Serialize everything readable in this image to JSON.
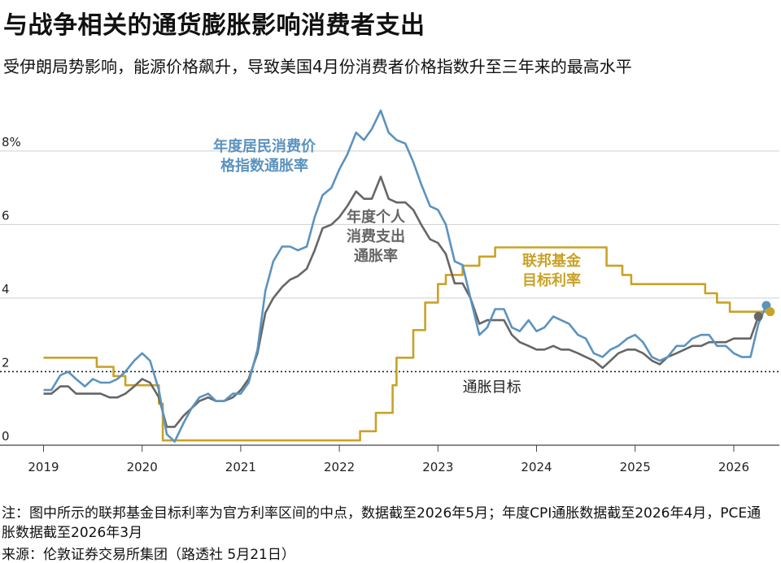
{
  "title": "与战争相关的通货膨胀影响消费者支出",
  "subtitle": "受伊朗局势影响，能源价格飙升，导致美国4月份消费者价格指数升至三年来的最高水平",
  "note": "注：图中所示的联邦基金目标利率为官方利率区间的中点，数据截至2026年5月；年度CPI通胀数据截至2026年4月，PCE通胀数据截至2026年3月",
  "source": "来源：伦敦证券交易所集团（路透社 5月21日）",
  "chart_data": {
    "type": "line",
    "ylim": [
      0,
      9.3
    ],
    "xlim": [
      2018.93,
      2026.38
    ],
    "y_ticks": [
      {
        "value": 0,
        "label": "0"
      },
      {
        "value": 2,
        "label": "2"
      },
      {
        "value": 4,
        "label": "4"
      },
      {
        "value": 6,
        "label": "6"
      },
      {
        "value": 8,
        "label": "8%"
      }
    ],
    "x_ticks": [
      {
        "value": 2019,
        "label": "2019"
      },
      {
        "value": 2020,
        "label": "2020"
      },
      {
        "value": 2021,
        "label": "2021"
      },
      {
        "value": 2022,
        "label": "2022"
      },
      {
        "value": 2023,
        "label": "2023"
      },
      {
        "value": 2024,
        "label": "2024"
      },
      {
        "value": 2025,
        "label": "2025"
      },
      {
        "value": 2026,
        "label": "2026"
      }
    ],
    "target_line": {
      "value": 2,
      "label": "通胀目标"
    },
    "series": [
      {
        "name": "年度居民消费价格指数通胀率",
        "label_lines": [
          "年度居民消费价",
          "格指数通胀率"
        ],
        "color": "#5b93bf",
        "points": [
          [
            2019.0,
            1.5
          ],
          [
            2019.08,
            1.5
          ],
          [
            2019.17,
            1.9
          ],
          [
            2019.25,
            2.0
          ],
          [
            2019.33,
            1.8
          ],
          [
            2019.42,
            1.6
          ],
          [
            2019.5,
            1.8
          ],
          [
            2019.58,
            1.7
          ],
          [
            2019.67,
            1.7
          ],
          [
            2019.75,
            1.8
          ],
          [
            2019.83,
            2.0
          ],
          [
            2019.92,
            2.3
          ],
          [
            2020.0,
            2.5
          ],
          [
            2020.08,
            2.3
          ],
          [
            2020.17,
            1.5
          ],
          [
            2020.25,
            0.3
          ],
          [
            2020.33,
            0.1
          ],
          [
            2020.42,
            0.6
          ],
          [
            2020.5,
            1.0
          ],
          [
            2020.58,
            1.3
          ],
          [
            2020.67,
            1.4
          ],
          [
            2020.75,
            1.2
          ],
          [
            2020.83,
            1.2
          ],
          [
            2020.92,
            1.4
          ],
          [
            2021.0,
            1.4
          ],
          [
            2021.08,
            1.7
          ],
          [
            2021.17,
            2.6
          ],
          [
            2021.25,
            4.2
          ],
          [
            2021.33,
            5.0
          ],
          [
            2021.42,
            5.4
          ],
          [
            2021.5,
            5.4
          ],
          [
            2021.58,
            5.3
          ],
          [
            2021.67,
            5.4
          ],
          [
            2021.75,
            6.2
          ],
          [
            2021.83,
            6.8
          ],
          [
            2021.92,
            7.0
          ],
          [
            2022.0,
            7.5
          ],
          [
            2022.08,
            7.9
          ],
          [
            2022.17,
            8.5
          ],
          [
            2022.25,
            8.3
          ],
          [
            2022.33,
            8.6
          ],
          [
            2022.42,
            9.1
          ],
          [
            2022.5,
            8.5
          ],
          [
            2022.58,
            8.3
          ],
          [
            2022.67,
            8.2
          ],
          [
            2022.75,
            7.7
          ],
          [
            2022.83,
            7.1
          ],
          [
            2022.92,
            6.5
          ],
          [
            2023.0,
            6.4
          ],
          [
            2023.08,
            6.0
          ],
          [
            2023.17,
            5.0
          ],
          [
            2023.25,
            4.9
          ],
          [
            2023.33,
            4.0
          ],
          [
            2023.42,
            3.0
          ],
          [
            2023.5,
            3.2
          ],
          [
            2023.58,
            3.7
          ],
          [
            2023.67,
            3.7
          ],
          [
            2023.75,
            3.2
          ],
          [
            2023.83,
            3.1
          ],
          [
            2023.92,
            3.4
          ],
          [
            2024.0,
            3.1
          ],
          [
            2024.08,
            3.2
          ],
          [
            2024.17,
            3.5
          ],
          [
            2024.25,
            3.4
          ],
          [
            2024.33,
            3.3
          ],
          [
            2024.42,
            3.0
          ],
          [
            2024.5,
            2.9
          ],
          [
            2024.58,
            2.5
          ],
          [
            2024.67,
            2.4
          ],
          [
            2024.75,
            2.6
          ],
          [
            2024.83,
            2.7
          ],
          [
            2024.92,
            2.9
          ],
          [
            2025.0,
            3.0
          ],
          [
            2025.08,
            2.8
          ],
          [
            2025.17,
            2.4
          ],
          [
            2025.25,
            2.3
          ],
          [
            2025.33,
            2.4
          ],
          [
            2025.42,
            2.7
          ],
          [
            2025.5,
            2.7
          ],
          [
            2025.58,
            2.9
          ],
          [
            2025.67,
            3.0
          ],
          [
            2025.75,
            3.0
          ],
          [
            2025.83,
            2.7
          ],
          [
            2025.92,
            2.7
          ],
          [
            2026.0,
            2.5
          ],
          [
            2026.08,
            2.4
          ],
          [
            2026.17,
            2.4
          ],
          [
            2026.25,
            3.3
          ],
          [
            2026.33,
            3.8
          ]
        ]
      },
      {
        "name": "年度个人消费支出通胀率",
        "label_lines": [
          "年度个人",
          "消费支出",
          "通胀率"
        ],
        "color": "#666666",
        "points": [
          [
            2019.0,
            1.4
          ],
          [
            2019.08,
            1.4
          ],
          [
            2019.17,
            1.6
          ],
          [
            2019.25,
            1.6
          ],
          [
            2019.33,
            1.4
          ],
          [
            2019.42,
            1.4
          ],
          [
            2019.5,
            1.4
          ],
          [
            2019.58,
            1.4
          ],
          [
            2019.67,
            1.3
          ],
          [
            2019.75,
            1.3
          ],
          [
            2019.83,
            1.4
          ],
          [
            2019.92,
            1.6
          ],
          [
            2020.0,
            1.8
          ],
          [
            2020.08,
            1.7
          ],
          [
            2020.17,
            1.3
          ],
          [
            2020.25,
            0.5
          ],
          [
            2020.33,
            0.5
          ],
          [
            2020.42,
            0.8
          ],
          [
            2020.5,
            1.0
          ],
          [
            2020.58,
            1.2
          ],
          [
            2020.67,
            1.3
          ],
          [
            2020.75,
            1.2
          ],
          [
            2020.83,
            1.2
          ],
          [
            2020.92,
            1.3
          ],
          [
            2021.0,
            1.5
          ],
          [
            2021.08,
            1.8
          ],
          [
            2021.17,
            2.5
          ],
          [
            2021.25,
            3.6
          ],
          [
            2021.33,
            4.0
          ],
          [
            2021.42,
            4.3
          ],
          [
            2021.5,
            4.5
          ],
          [
            2021.58,
            4.6
          ],
          [
            2021.67,
            4.8
          ],
          [
            2021.75,
            5.3
          ],
          [
            2021.83,
            5.9
          ],
          [
            2021.92,
            6.0
          ],
          [
            2022.0,
            6.2
          ],
          [
            2022.08,
            6.5
          ],
          [
            2022.17,
            6.9
          ],
          [
            2022.25,
            6.7
          ],
          [
            2022.33,
            6.7
          ],
          [
            2022.42,
            7.3
          ],
          [
            2022.5,
            6.7
          ],
          [
            2022.58,
            6.6
          ],
          [
            2022.67,
            6.6
          ],
          [
            2022.75,
            6.4
          ],
          [
            2022.83,
            6.0
          ],
          [
            2022.92,
            5.6
          ],
          [
            2023.0,
            5.5
          ],
          [
            2023.08,
            5.2
          ],
          [
            2023.17,
            4.4
          ],
          [
            2023.25,
            4.4
          ],
          [
            2023.33,
            4.0
          ],
          [
            2023.42,
            3.3
          ],
          [
            2023.5,
            3.4
          ],
          [
            2023.58,
            3.4
          ],
          [
            2023.67,
            3.4
          ],
          [
            2023.75,
            3.0
          ],
          [
            2023.83,
            2.8
          ],
          [
            2023.92,
            2.7
          ],
          [
            2024.0,
            2.6
          ],
          [
            2024.08,
            2.6
          ],
          [
            2024.17,
            2.7
          ],
          [
            2024.25,
            2.6
          ],
          [
            2024.33,
            2.6
          ],
          [
            2024.42,
            2.5
          ],
          [
            2024.5,
            2.4
          ],
          [
            2024.58,
            2.3
          ],
          [
            2024.67,
            2.1
          ],
          [
            2024.75,
            2.3
          ],
          [
            2024.83,
            2.5
          ],
          [
            2024.92,
            2.6
          ],
          [
            2025.0,
            2.6
          ],
          [
            2025.08,
            2.5
          ],
          [
            2025.17,
            2.3
          ],
          [
            2025.25,
            2.2
          ],
          [
            2025.33,
            2.4
          ],
          [
            2025.42,
            2.5
          ],
          [
            2025.5,
            2.6
          ],
          [
            2025.58,
            2.7
          ],
          [
            2025.67,
            2.7
          ],
          [
            2025.75,
            2.8
          ],
          [
            2025.83,
            2.8
          ],
          [
            2025.92,
            2.8
          ],
          [
            2026.0,
            2.9
          ],
          [
            2026.08,
            2.9
          ],
          [
            2026.17,
            2.9
          ],
          [
            2026.25,
            3.5
          ]
        ]
      },
      {
        "name": "联邦基金目标利率",
        "label_lines": [
          "联邦基金",
          "目标利率"
        ],
        "color": "#c9a227",
        "step": true,
        "points": [
          [
            2019.0,
            2.38
          ],
          [
            2019.54,
            2.38
          ],
          [
            2019.54,
            2.13
          ],
          [
            2019.71,
            2.13
          ],
          [
            2019.71,
            1.88
          ],
          [
            2019.83,
            1.88
          ],
          [
            2019.83,
            1.63
          ],
          [
            2020.17,
            1.63
          ],
          [
            2020.17,
            1.13
          ],
          [
            2020.21,
            1.13
          ],
          [
            2020.21,
            0.13
          ],
          [
            2022.21,
            0.13
          ],
          [
            2022.21,
            0.38
          ],
          [
            2022.37,
            0.38
          ],
          [
            2022.37,
            0.88
          ],
          [
            2022.54,
            0.88
          ],
          [
            2022.54,
            1.63
          ],
          [
            2022.58,
            1.63
          ],
          [
            2022.58,
            2.38
          ],
          [
            2022.75,
            2.38
          ],
          [
            2022.75,
            3.13
          ],
          [
            2022.87,
            3.13
          ],
          [
            2022.87,
            3.88
          ],
          [
            2023.0,
            3.88
          ],
          [
            2023.0,
            4.38
          ],
          [
            2023.08,
            4.38
          ],
          [
            2023.08,
            4.63
          ],
          [
            2023.25,
            4.63
          ],
          [
            2023.25,
            4.88
          ],
          [
            2023.42,
            4.88
          ],
          [
            2023.42,
            5.13
          ],
          [
            2023.58,
            5.13
          ],
          [
            2023.58,
            5.38
          ],
          [
            2024.71,
            5.38
          ],
          [
            2024.71,
            4.88
          ],
          [
            2024.87,
            4.88
          ],
          [
            2024.87,
            4.63
          ],
          [
            2024.96,
            4.63
          ],
          [
            2024.96,
            4.38
          ],
          [
            2025.71,
            4.38
          ],
          [
            2025.71,
            4.13
          ],
          [
            2025.83,
            4.13
          ],
          [
            2025.83,
            3.88
          ],
          [
            2025.96,
            3.88
          ],
          [
            2025.96,
            3.63
          ],
          [
            2026.37,
            3.63
          ]
        ]
      }
    ],
    "end_markers": [
      {
        "series": 0,
        "x": 2026.33,
        "y": 3.8
      },
      {
        "series": 1,
        "x": 2026.25,
        "y": 3.5
      },
      {
        "series": 2,
        "x": 2026.37,
        "y": 3.63
      }
    ]
  }
}
